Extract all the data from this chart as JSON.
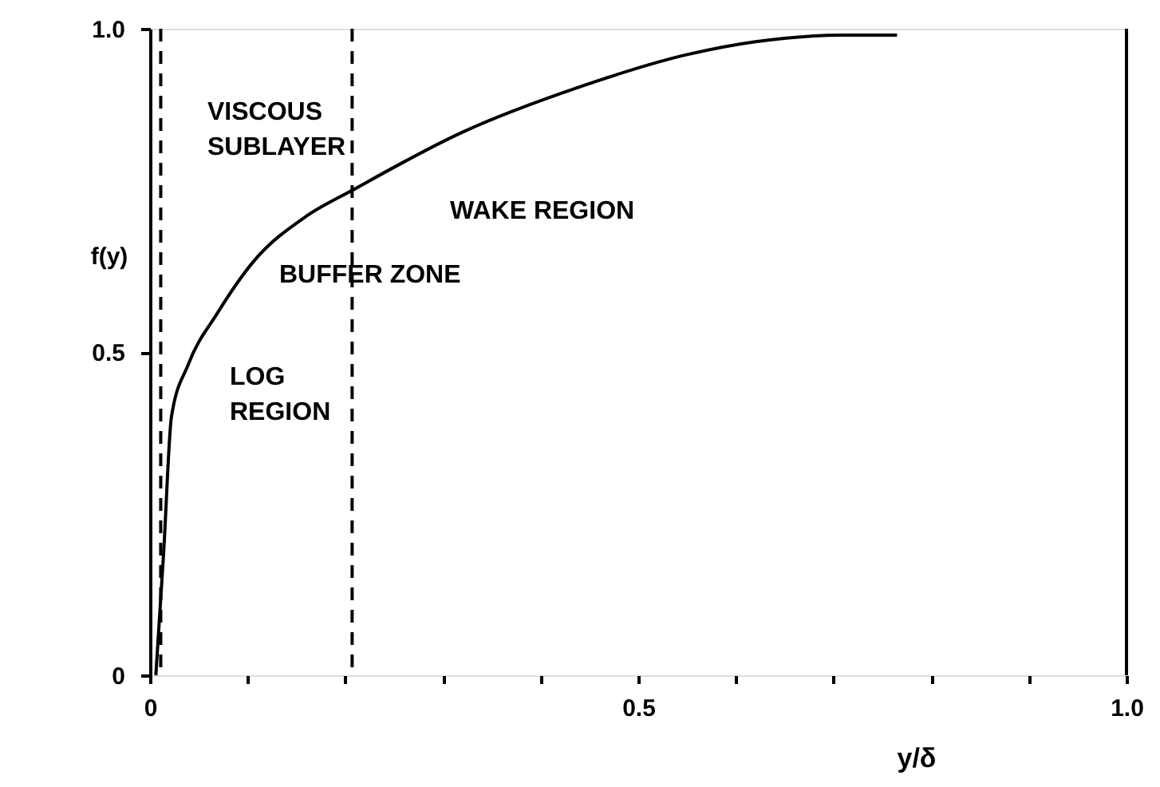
{
  "chart_data": {
    "type": "line",
    "xlabel": "y/δ",
    "ylabel": "f(y)",
    "x": [
      0.006,
      0.014,
      0.022,
      0.039,
      0.069,
      0.106,
      0.16,
      0.207,
      0.32,
      0.44,
      0.55,
      0.62,
      0.71,
      0.765
    ],
    "series": [
      {
        "color": "#000000",
        "values": [
          0,
          0.19,
          0.4,
          0.48,
          0.56,
          0.64,
          0.71,
          0.75,
          0.84,
          0.91,
          0.96,
          0.98,
          0.99,
          0.99
        ]
      }
    ],
    "xlim": [
      0,
      1
    ],
    "ylim": [
      0,
      1
    ],
    "xticks": [
      0,
      {
        "value": 0.1,
        "label": null
      },
      {
        "value": 0.2,
        "label": null
      },
      {
        "value": 0.3,
        "label": null
      },
      {
        "value": 0.4,
        "label": null
      },
      0.5,
      {
        "value": 0.6,
        "label": null
      },
      {
        "value": 0.7,
        "label": null
      },
      {
        "value": 0.8,
        "label": null
      },
      {
        "value": 0.9,
        "label": null
      },
      {
        "value": 1,
        "label": "1.0"
      }
    ],
    "yticks": [
      0,
      0.5,
      {
        "value": 1,
        "label": "1.0"
      }
    ],
    "ref_lines": [
      {
        "axis": "x",
        "value": 0.011,
        "line_style": "dashed",
        "color": "#000000"
      },
      {
        "axis": "x",
        "value": 0.207,
        "line_style": "dashed",
        "color": "#000000"
      },
      {
        "axis": "x",
        "value": 1,
        "line_style": "solid",
        "color": "#000000"
      }
    ],
    "annotations": [
      "VISCOUS\nSUBLAYER",
      "BUFFER ZONE",
      "WAKE REGION",
      "LOG\nREGION"
    ],
    "grid": false,
    "marker": "none",
    "line_style": "solid"
  }
}
